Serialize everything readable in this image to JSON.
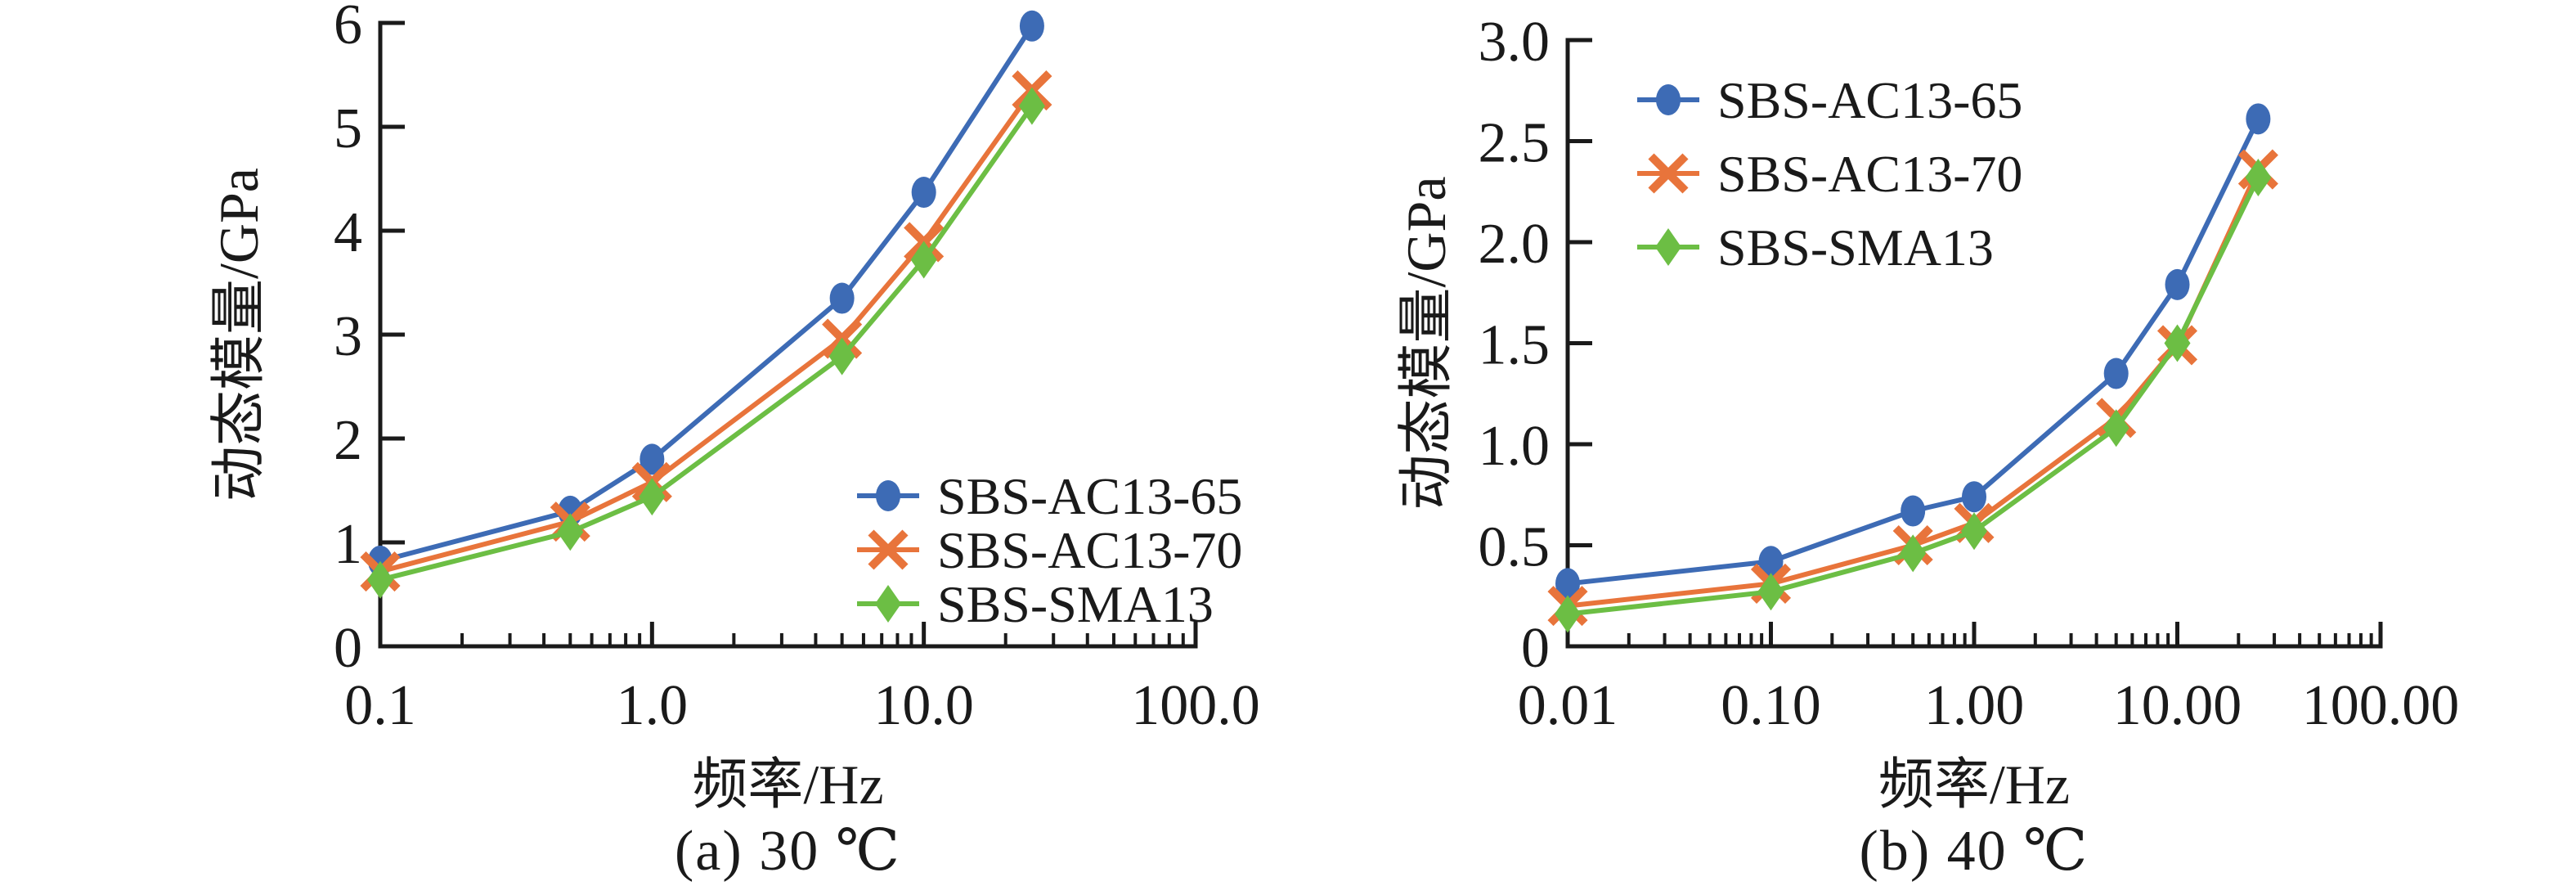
{
  "figure": {
    "background": "#ffffff",
    "text_color": "#1a1a1a",
    "panel_count": 2
  },
  "captions": {
    "a": "(a) 30 ℃",
    "b": "(b) 40 ℃"
  },
  "chart_data": [
    {
      "type": "line",
      "panel": "a",
      "caption": "(a) 30 ℃",
      "title": "",
      "xlabel": "频率/Hz",
      "ylabel": "动态模量/GPa",
      "x_scale": "log",
      "xlim": [
        0.1,
        100.0
      ],
      "x_major_ticks": [
        0.1,
        1.0,
        10.0,
        100.0
      ],
      "x_major_tick_labels": [
        "0.1",
        "1.0",
        "10.0",
        "100.0"
      ],
      "ylim": [
        0,
        6
      ],
      "y_ticks": [
        0,
        1,
        2,
        3,
        4,
        5,
        6
      ],
      "y_tick_labels": [
        "0",
        "1",
        "2",
        "3",
        "4",
        "5",
        "6"
      ],
      "grid": false,
      "legend_position": "lower-right",
      "x": [
        0.1,
        0.5,
        1,
        5,
        10,
        25
      ],
      "series": [
        {
          "name": "SBS-AC13-65",
          "marker": "circle",
          "color": "#3D6BB5",
          "values": [
            0.82,
            1.3,
            1.8,
            3.35,
            4.37,
            5.97
          ]
        },
        {
          "name": "SBS-AC13-70",
          "marker": "x-cross",
          "color": "#E8743B",
          "values": [
            0.72,
            1.2,
            1.58,
            2.96,
            3.89,
            5.35
          ]
        },
        {
          "name": "SBS-SMA13",
          "marker": "diamond",
          "color": "#6CBE44",
          "values": [
            0.64,
            1.1,
            1.44,
            2.79,
            3.72,
            5.2
          ]
        }
      ]
    },
    {
      "type": "line",
      "panel": "b",
      "caption": "(b) 40 ℃",
      "title": "",
      "xlabel": "频率/Hz",
      "ylabel": "动态模量/GPa",
      "x_scale": "log",
      "xlim": [
        0.01,
        100.0
      ],
      "x_major_ticks": [
        0.01,
        0.1,
        1.0,
        10.0,
        100.0
      ],
      "x_major_tick_labels": [
        "0.01",
        "0.10",
        "1.00",
        "10.00",
        "100.00"
      ],
      "ylim": [
        0,
        3
      ],
      "y_ticks": [
        0,
        0.5,
        1.0,
        1.5,
        2.0,
        2.5,
        3.0
      ],
      "y_tick_labels": [
        "0",
        "0.5",
        "1.0",
        "1.5",
        "2.0",
        "2.5",
        "3.0"
      ],
      "grid": false,
      "legend_position": "upper-left",
      "x": [
        0.01,
        0.1,
        0.5,
        1,
        5,
        10,
        25
      ],
      "series": [
        {
          "name": "SBS-AC13-65",
          "marker": "circle",
          "color": "#3D6BB5",
          "values": [
            0.31,
            0.42,
            0.67,
            0.74,
            1.35,
            1.79,
            2.61
          ]
        },
        {
          "name": "SBS-AC13-70",
          "marker": "x-cross",
          "color": "#E8743B",
          "values": [
            0.2,
            0.31,
            0.5,
            0.61,
            1.13,
            1.49,
            2.36
          ]
        },
        {
          "name": "SBS-SMA13",
          "marker": "diamond",
          "color": "#6CBE44",
          "values": [
            0.16,
            0.27,
            0.46,
            0.57,
            1.08,
            1.5,
            2.32
          ]
        }
      ]
    }
  ]
}
